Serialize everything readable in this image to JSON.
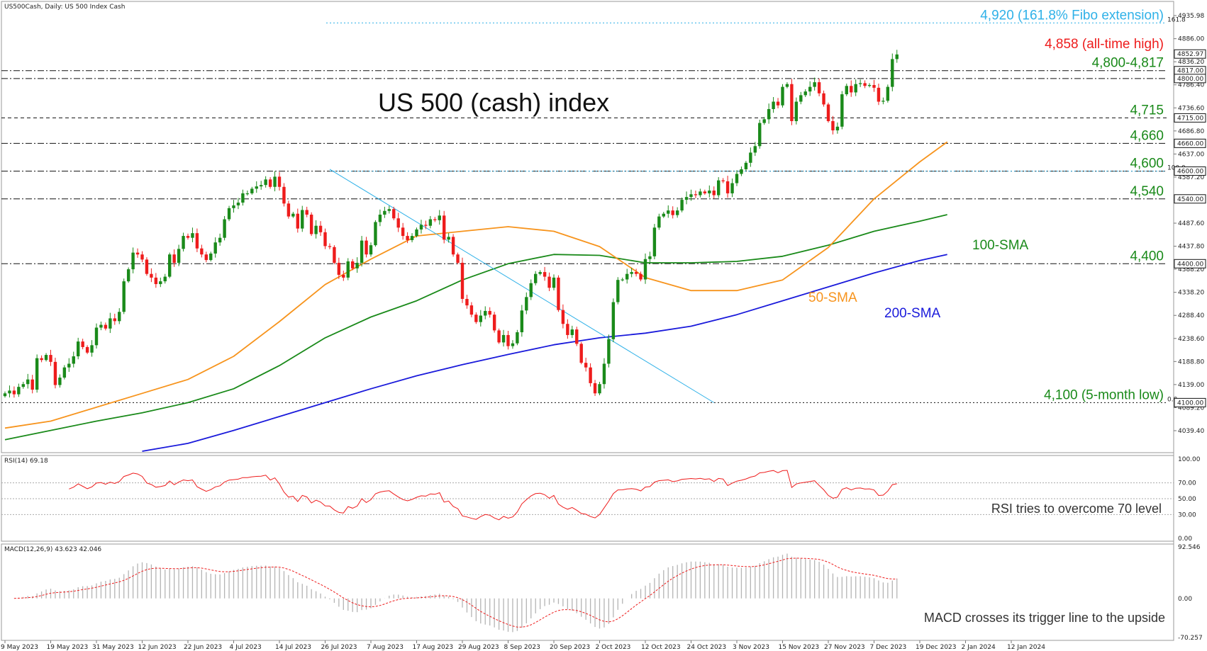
{
  "chart_data": {
    "type": "candlestick",
    "header": "US500Cash, Daily:  US 500 Index Cash",
    "title": "US 500 (cash) index",
    "price_axis": {
      "ylim": [
        3995,
        4965
      ],
      "ticks": [
        "4935.98",
        "4886.00",
        "4836.20",
        "4786.40",
        "4736.60",
        "4686.80",
        "4637.00",
        "4587.20",
        "4537.40",
        "4487.60",
        "4437.80",
        "4388.20",
        "4338.20",
        "4288.40",
        "4238.60",
        "4188.80",
        "4139.00",
        "4089.20",
        "4039.40"
      ],
      "boxed_ticks": [
        "4852.97",
        "4817.00",
        "4800.00",
        "4715.00",
        "4660.00",
        "4600.00",
        "4540.00",
        "4400.00",
        "4100.00"
      ]
    },
    "date_ticks": [
      "9 May 2023",
      "19 May 2023",
      "31 May 2023",
      "12 Jun 2023",
      "22 Jun 2023",
      "4 Jul 2023",
      "14 Jul 2023",
      "26 Jul 2023",
      "7 Aug 2023",
      "17 Aug 2023",
      "29 Aug 2023",
      "8 Sep 2023",
      "20 Sep 2023",
      "2 Oct 2023",
      "12 Oct 2023",
      "24 Oct 2023",
      "3 Nov 2023",
      "15 Nov 2023",
      "27 Nov 2023",
      "7 Dec 2023",
      "19 Dec 2023",
      "2 Jan 2024",
      "12 Jan 2024"
    ],
    "closes": [
      4120,
      4126,
      4118,
      4134,
      4140,
      4150,
      4128,
      4196,
      4192,
      4203,
      4188,
      4138,
      4154,
      4176,
      4184,
      4200,
      4232,
      4220,
      4208,
      4224,
      4262,
      4268,
      4260,
      4282,
      4276,
      4296,
      4362,
      4388,
      4424,
      4420,
      4409,
      4378,
      4370,
      4356,
      4362,
      4372,
      4420,
      4402,
      4432,
      4460,
      4456,
      4466,
      4433,
      4420,
      4408,
      4422,
      4446,
      4456,
      4496,
      4520,
      4526,
      4532,
      4552,
      4552,
      4562,
      4567,
      4570,
      4582,
      4566,
      4588,
      4566,
      4530,
      4502,
      4508,
      4476,
      4516,
      4506,
      4464,
      4482,
      4468,
      4438,
      4436,
      4402,
      4376,
      4370,
      4405,
      4390,
      4402,
      4450,
      4420,
      4440,
      4490,
      4506,
      4514,
      4518,
      4498,
      4478,
      4460,
      4451,
      4460,
      4474,
      4484,
      4482,
      4496,
      4494,
      4504,
      4452,
      4458,
      4420,
      4402,
      4324,
      4310,
      4290,
      4274,
      4288,
      4298,
      4290,
      4256,
      4230,
      4246,
      4222,
      4228,
      4252,
      4299,
      4328,
      4358,
      4378,
      4382,
      4372,
      4348,
      4370,
      4300,
      4270,
      4246,
      4258,
      4227,
      4186,
      4176,
      4142,
      4120,
      4140,
      4184,
      4237,
      4317,
      4365,
      4366,
      4378,
      4382,
      4378,
      4366,
      4410,
      4416,
      4478,
      4502,
      4508,
      4515,
      4505,
      4515,
      4538,
      4544,
      4550,
      4548,
      4556,
      4552,
      4558,
      4548,
      4580,
      4578,
      4552,
      4574,
      4594,
      4604,
      4618,
      4640,
      4654,
      4704,
      4712,
      4734,
      4750,
      4742,
      4782,
      4788,
      4708,
      4750,
      4764,
      4772,
      4782,
      4792,
      4768,
      4744,
      4708,
      4688,
      4696,
      4766,
      4784,
      4770,
      4788,
      4790,
      4784,
      4786,
      4780,
      4750,
      4752,
      4782,
      4842,
      4852
    ],
    "sma50_points": [
      [
        0,
        4045
      ],
      [
        10,
        4060
      ],
      [
        20,
        4090
      ],
      [
        30,
        4120
      ],
      [
        40,
        4150
      ],
      [
        50,
        4200
      ],
      [
        60,
        4275
      ],
      [
        70,
        4355
      ],
      [
        80,
        4410
      ],
      [
        90,
        4460
      ],
      [
        100,
        4470
      ],
      [
        110,
        4480
      ],
      [
        120,
        4470
      ],
      [
        130,
        4437
      ],
      [
        140,
        4370
      ],
      [
        150,
        4342
      ],
      [
        160,
        4342
      ],
      [
        170,
        4365
      ],
      [
        180,
        4435
      ],
      [
        190,
        4540
      ],
      [
        200,
        4620
      ],
      [
        206,
        4663
      ]
    ],
    "sma100_points": [
      [
        0,
        4020
      ],
      [
        10,
        4040
      ],
      [
        20,
        4060
      ],
      [
        30,
        4078
      ],
      [
        40,
        4100
      ],
      [
        50,
        4130
      ],
      [
        60,
        4180
      ],
      [
        70,
        4240
      ],
      [
        80,
        4285
      ],
      [
        90,
        4320
      ],
      [
        100,
        4365
      ],
      [
        110,
        4400
      ],
      [
        120,
        4420
      ],
      [
        130,
        4418
      ],
      [
        140,
        4402
      ],
      [
        150,
        4402
      ],
      [
        160,
        4405
      ],
      [
        170,
        4416
      ],
      [
        180,
        4440
      ],
      [
        190,
        4470
      ],
      [
        200,
        4492
      ],
      [
        206,
        4506
      ]
    ],
    "sma200_points": [
      [
        30,
        3995
      ],
      [
        40,
        4012
      ],
      [
        50,
        4040
      ],
      [
        60,
        4070
      ],
      [
        70,
        4100
      ],
      [
        80,
        4130
      ],
      [
        90,
        4158
      ],
      [
        100,
        4182
      ],
      [
        110,
        4204
      ],
      [
        120,
        4225
      ],
      [
        130,
        4240
      ],
      [
        140,
        4250
      ],
      [
        150,
        4265
      ],
      [
        160,
        4290
      ],
      [
        170,
        4320
      ],
      [
        180,
        4350
      ],
      [
        190,
        4380
      ],
      [
        200,
        4407
      ],
      [
        206,
        4420
      ]
    ],
    "levels": [
      {
        "value": 4920,
        "label": "4,920 (161.8% Fibo extension)",
        "color": "#2fb1e8",
        "style": "dotted"
      },
      {
        "value": 4858,
        "label": "4,858 (all-time high)",
        "color": "#ee1c1c",
        "style": "none"
      },
      {
        "value": 4817,
        "label": "4,800-4,817",
        "color": "#1a8a1a",
        "style": "dashdot"
      },
      {
        "value": 4800,
        "label": "",
        "color": "#1a8a1a",
        "style": "dashdot"
      },
      {
        "value": 4715,
        "label": "4,715",
        "color": "#1a8a1a",
        "style": "dashed"
      },
      {
        "value": 4660,
        "label": "4,660",
        "color": "#1a8a1a",
        "style": "dashdot"
      },
      {
        "value": 4600,
        "label": "4,600",
        "color": "#1a8a1a",
        "style": "dashdot"
      },
      {
        "value": 4540,
        "label": "4,540",
        "color": "#1a8a1a",
        "style": "dashdot"
      },
      {
        "value": 4400,
        "label": "4,400",
        "color": "#1a8a1a",
        "style": "dashdot"
      },
      {
        "value": 4100,
        "label": "4,100 (5-month low)",
        "color": "#1a8a1a",
        "style": "dotted"
      }
    ],
    "fibo_tags": [
      "161.8",
      "100.0",
      "0.0"
    ],
    "ma_labels": [
      {
        "text": "50-SMA",
        "color": "#f7941d"
      },
      {
        "text": "100-SMA",
        "color": "#1a8a1a"
      },
      {
        "text": "200-SMA",
        "color": "#1a1adb"
      }
    ],
    "rsi": {
      "header": "RSI(14) 69.18",
      "ticks": [
        "100.00",
        "70.00",
        "50.00",
        "30.00",
        "0.00"
      ],
      "ylim": [
        0,
        100
      ],
      "annotation": "RSI tries to overcome 70 level"
    },
    "macd": {
      "header": "MACD(12,26,9) 43.623 42.046",
      "ticks": [
        "92.546",
        "0.00",
        "-70.257"
      ],
      "ylim": [
        -70.257,
        92.546
      ],
      "annotation": "MACD crosses its trigger line to the upside"
    },
    "colors": {
      "up": "#1a8a1a",
      "down": "#ee1c1c",
      "sma50": "#f7941d",
      "sma100": "#1a8a1a",
      "sma200": "#1a1adb",
      "rsi": "#ee1c1c",
      "macd_hist": "#b4b4b4",
      "macd_signal": "#ee1c1c",
      "fibo": "#2fb1e8"
    }
  }
}
